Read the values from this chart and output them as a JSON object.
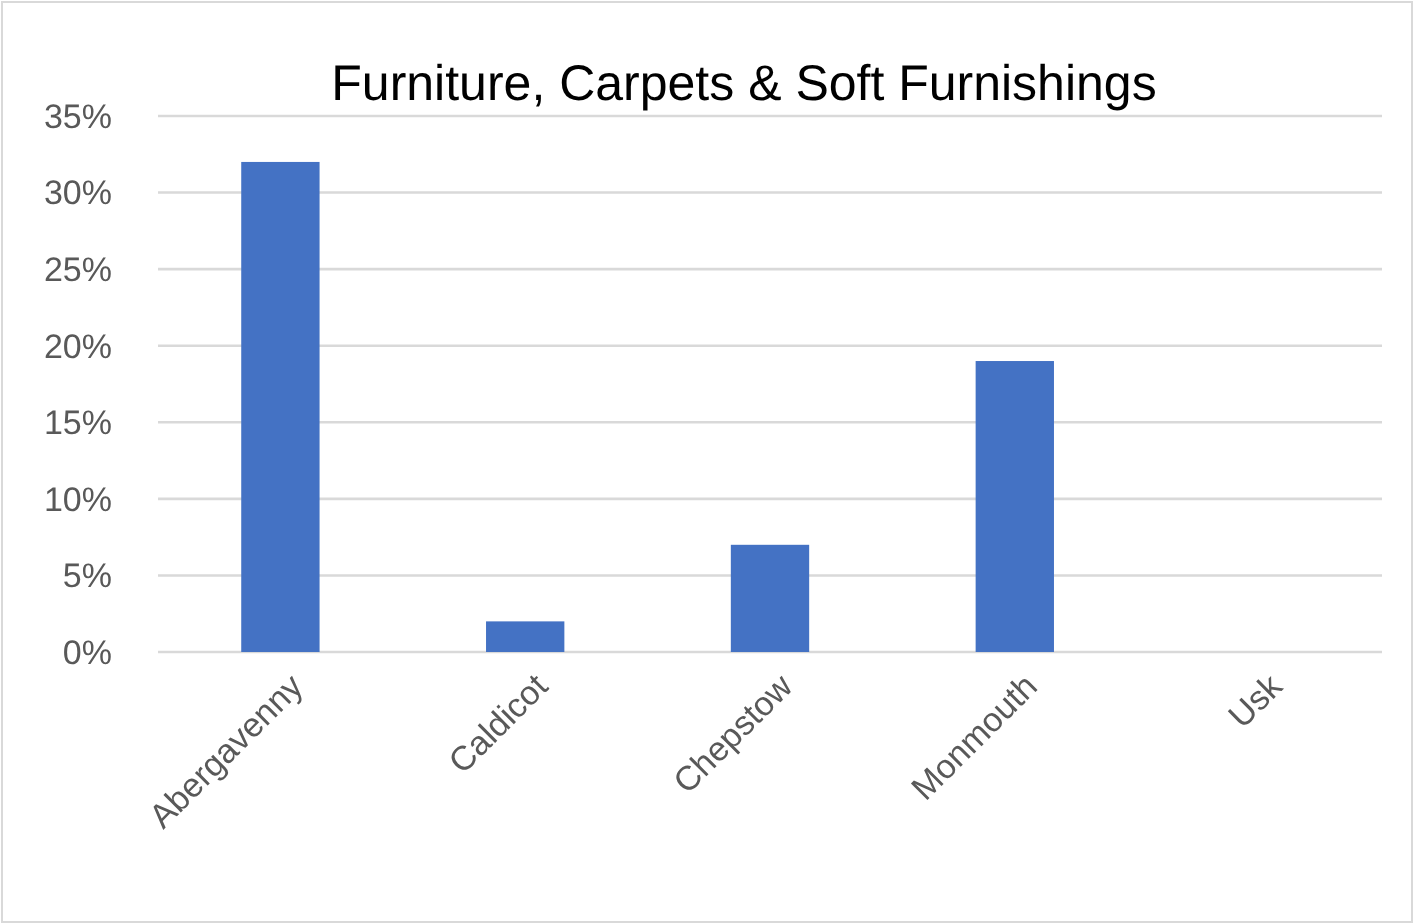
{
  "chart_data": {
    "type": "bar",
    "title": "Furniture, Carpets & Soft Furnishings",
    "categories": [
      "Abergavenny",
      "Caldicot",
      "Chepstow",
      "Monmouth",
      "Usk"
    ],
    "values": [
      32,
      2,
      7,
      19,
      0
    ],
    "color": "#4472c4",
    "ylim": [
      0,
      35
    ],
    "yticks": [
      {
        "value": 0,
        "label": "0%"
      },
      {
        "value": 5,
        "label": "5%"
      },
      {
        "value": 10,
        "label": "10%"
      },
      {
        "value": 15,
        "label": "15%"
      },
      {
        "value": 20,
        "label": "20%"
      },
      {
        "value": 25,
        "label": "25%"
      },
      {
        "value": 30,
        "label": "30%"
      },
      {
        "value": 35,
        "label": "35%"
      }
    ],
    "grid": "y"
  }
}
